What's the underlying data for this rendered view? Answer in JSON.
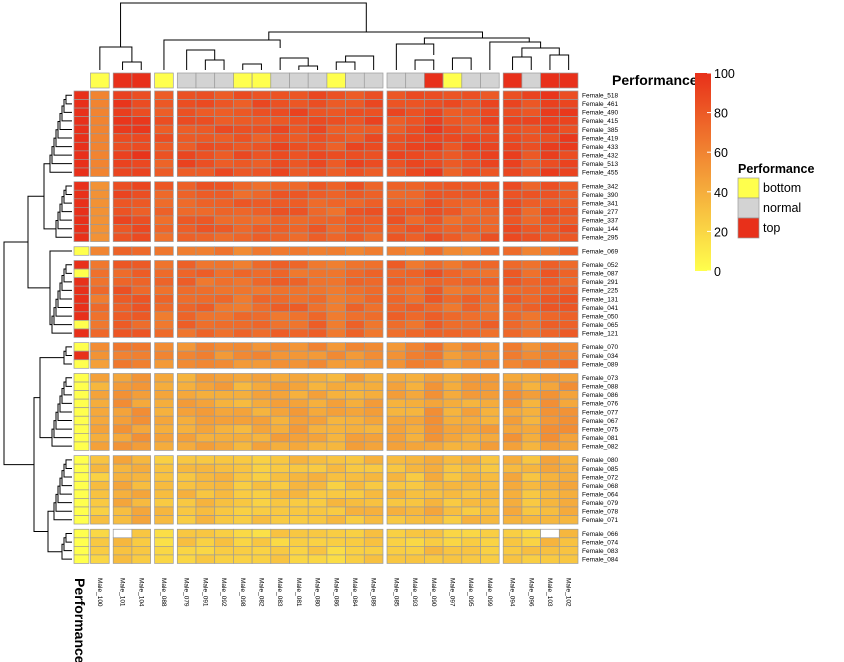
{
  "chart_data": {
    "type": "heatmap",
    "title": "",
    "columns": [
      "Male_100",
      "Male_101",
      "Male_104",
      "Male_088",
      "Male_079",
      "Male_091",
      "Male_092",
      "Male_098",
      "Male_082",
      "Male_083",
      "Male_081",
      "Male_080",
      "Male_086",
      "Male_084",
      "Male_089",
      "Male_085",
      "Male_093",
      "Male_090",
      "Male_097",
      "Male_095",
      "Male_099",
      "Male_094",
      "Male_096",
      "Male_103",
      "Male_102"
    ],
    "column_performance": [
      "bottom",
      "top",
      "top",
      "bottom",
      "normal",
      "normal",
      "normal",
      "bottom",
      "bottom",
      "normal",
      "normal",
      "normal",
      "bottom",
      "normal",
      "normal",
      "normal",
      "normal",
      "top",
      "bottom",
      "normal",
      "normal",
      "top",
      "normal",
      "top",
      "top"
    ],
    "column_splits_after": [
      0,
      2,
      3,
      14,
      20
    ],
    "rows": [
      "Female_518",
      "Female_461",
      "Female_490",
      "Female_415",
      "Female_385",
      "Female_419",
      "Female_433",
      "Female_432",
      "Female_513",
      "Female_455",
      "Female_342",
      "Female_390",
      "Female_341",
      "Female_277",
      "Female_337",
      "Female_144",
      "Female_295",
      "Female_069",
      "Female_052",
      "Female_087",
      "Female_291",
      "Female_225",
      "Female_131",
      "Female_041",
      "Female_050",
      "Female_065",
      "Female_121",
      "Female_070",
      "Female_034",
      "Female_089",
      "Female_073",
      "Female_088",
      "Female_086",
      "Female_076",
      "Female_077",
      "Female_067",
      "Female_075",
      "Female_081",
      "Female_082",
      "Female_080",
      "Female_085",
      "Female_072",
      "Female_068",
      "Female_064",
      "Female_079",
      "Female_078",
      "Female_071",
      "Female_066",
      "Female_074",
      "Female_083",
      "Female_084"
    ],
    "row_performance": [
      "top",
      "top",
      "top",
      "top",
      "top",
      "top",
      "top",
      "top",
      "top",
      "top",
      "top",
      "top",
      "top",
      "top",
      "top",
      "top",
      "top",
      "bottom",
      "top",
      "bottom",
      "top",
      "top",
      "top",
      "top",
      "top",
      "bottom",
      "top",
      "bottom",
      "top",
      "bottom",
      "bottom",
      "bottom",
      "bottom",
      "bottom",
      "bottom",
      "bottom",
      "bottom",
      "bottom",
      "bottom",
      "bottom",
      "bottom",
      "bottom",
      "bottom",
      "bottom",
      "bottom",
      "bottom",
      "bottom",
      "bottom",
      "bottom",
      "bottom",
      "bottom"
    ],
    "row_splits_after": [
      9,
      16,
      17,
      26,
      29,
      38,
      46
    ],
    "row_cluster_levels": [
      90,
      84,
      70,
      66,
      58,
      45,
      35,
      28
    ],
    "scale": {
      "min": 0,
      "max": 100,
      "ticks": [
        0,
        20,
        40,
        60,
        80,
        100
      ]
    },
    "palette": {
      "low": "#ffff4d",
      "mid": "#f4a33a",
      "high": "#e8301a",
      "missing": "#ffffff",
      "gap": "#ffffff",
      "border": "#9a9a9a"
    },
    "annotation": {
      "title": "Performance",
      "row_label": "Performance",
      "column_label": "Performance",
      "categories": [
        {
          "key": "bottom",
          "label": "bottom",
          "color": "#ffff4d"
        },
        {
          "key": "normal",
          "label": "normal",
          "color": "#d3d3d3"
        },
        {
          "key": "top",
          "label": "top",
          "color": "#e8301a"
        }
      ]
    },
    "missing_cells": [
      [
        "Female_066",
        "Male_101"
      ],
      [
        "Female_066",
        "Male_103"
      ]
    ]
  }
}
